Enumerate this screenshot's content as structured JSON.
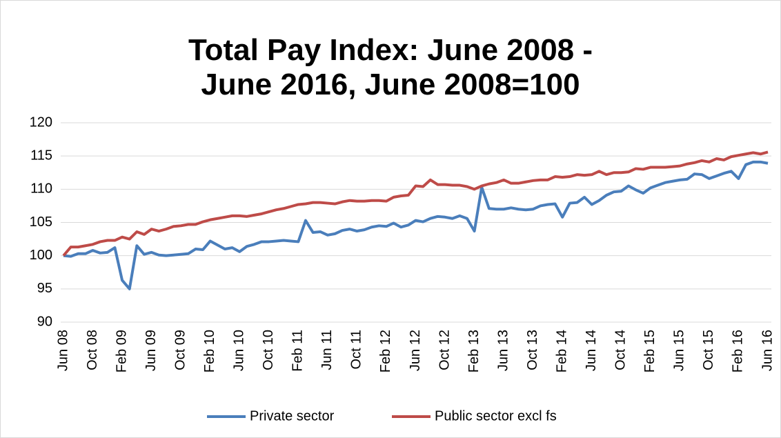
{
  "chart_data": {
    "type": "line",
    "title": "Total Pay Index: June 2008 - June 2016, June 2008=100",
    "categories": [
      "Jun 08",
      null,
      null,
      null,
      "Oct 08",
      null,
      null,
      null,
      "Feb 09",
      null,
      null,
      null,
      "Jun 09",
      null,
      null,
      null,
      "Oct 09",
      null,
      null,
      null,
      "Feb 10",
      null,
      null,
      null,
      "Jun 10",
      null,
      null,
      null,
      "Oct 10",
      null,
      null,
      null,
      "Feb 11",
      null,
      null,
      null,
      "Jun 11",
      null,
      null,
      null,
      "Oct 11",
      null,
      null,
      null,
      "Feb 12",
      null,
      null,
      null,
      "Jun 12",
      null,
      null,
      null,
      "Oct 12",
      null,
      null,
      null,
      "Feb 13",
      null,
      null,
      null,
      "Jun 13",
      null,
      null,
      null,
      "Oct 13",
      null,
      null,
      null,
      "Feb 14",
      null,
      null,
      null,
      "Jun 14",
      null,
      null,
      null,
      "Oct 14",
      null,
      null,
      null,
      "Feb 15",
      null,
      null,
      null,
      "Jun 15",
      null,
      null,
      null,
      "Oct 15",
      null,
      null,
      null,
      "Feb 16",
      null,
      null,
      null,
      "Jun 16"
    ],
    "series": [
      {
        "name": "Private sector",
        "color": "#4a7ebb",
        "values": [
          100,
          99.9,
          100.3,
          100.3,
          100.8,
          100.4,
          100.5,
          101.2,
          96.3,
          95.0,
          101.5,
          100.2,
          100.5,
          100.1,
          100.0,
          100.1,
          100.2,
          100.3,
          101.0,
          100.9,
          102.2,
          101.6,
          101.0,
          101.2,
          100.6,
          101.4,
          101.7,
          102.1,
          102.1,
          102.2,
          102.3,
          102.2,
          102.1,
          105.3,
          103.5,
          103.6,
          103.1,
          103.3,
          103.8,
          104.0,
          103.7,
          103.9,
          104.3,
          104.5,
          104.4,
          104.9,
          104.3,
          104.6,
          105.3,
          105.1,
          105.6,
          105.9,
          105.8,
          105.6,
          106.0,
          105.6,
          103.7,
          110.3,
          107.1,
          107.0,
          107.0,
          107.2,
          107.0,
          106.9,
          107.0,
          107.5,
          107.7,
          107.8,
          105.8,
          107.9,
          108.0,
          108.8,
          107.7,
          108.3,
          109.1,
          109.6,
          109.7,
          110.5,
          109.9,
          109.4,
          110.2,
          110.6,
          111.0,
          111.2,
          111.4,
          111.5,
          112.3,
          112.2,
          111.6,
          112.0,
          112.4,
          112.7,
          111.6,
          113.7,
          114.1,
          114.1,
          113.9
        ]
      },
      {
        "name": "Public sector excl fs",
        "color": "#be4b48",
        "values": [
          100,
          101.3,
          101.3,
          101.5,
          101.7,
          102.1,
          102.3,
          102.3,
          102.8,
          102.5,
          103.6,
          103.2,
          104.0,
          103.7,
          104.0,
          104.4,
          104.5,
          104.7,
          104.7,
          105.1,
          105.4,
          105.6,
          105.8,
          106.0,
          106.0,
          105.9,
          106.1,
          106.3,
          106.6,
          106.9,
          107.1,
          107.4,
          107.7,
          107.8,
          108.0,
          108.0,
          107.9,
          107.8,
          108.1,
          108.3,
          108.2,
          108.2,
          108.3,
          108.3,
          108.2,
          108.8,
          109.0,
          109.1,
          110.5,
          110.4,
          111.4,
          110.7,
          110.7,
          110.6,
          110.6,
          110.4,
          110.0,
          110.5,
          110.8,
          111.0,
          111.4,
          110.9,
          110.9,
          111.1,
          111.3,
          111.4,
          111.4,
          111.9,
          111.8,
          111.9,
          112.2,
          112.1,
          112.2,
          112.7,
          112.2,
          112.5,
          112.5,
          112.6,
          113.1,
          113.0,
          113.3,
          113.3,
          113.3,
          113.4,
          113.5,
          113.8,
          114.0,
          114.3,
          114.1,
          114.6,
          114.4,
          114.9,
          115.1,
          115.3,
          115.5,
          115.3,
          115.6
        ]
      }
    ],
    "ylim": [
      90,
      120
    ],
    "yticks": [
      90,
      95,
      100,
      105,
      110,
      115,
      120
    ],
    "grid": true,
    "legend": "bottom"
  }
}
